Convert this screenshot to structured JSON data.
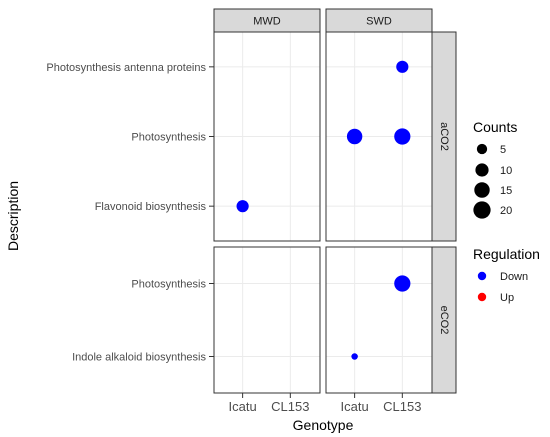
{
  "chart_data": {
    "type": "scatter",
    "xlabel": "Genotype",
    "ylabel": "Description",
    "col_facets": [
      "MWD",
      "SWD"
    ],
    "row_facets": [
      "aCO2",
      "eCO2"
    ],
    "x_categories": [
      "Icatu",
      "CL153"
    ],
    "row_categories": {
      "aCO2": [
        "Flavonoid biosynthesis",
        "Photosynthesis",
        "Photosynthesis antenna proteins"
      ],
      "eCO2": [
        "Indole alkaloid biosynthesis",
        "Photosynthesis"
      ]
    },
    "points": [
      {
        "col": "MWD",
        "row": "aCO2",
        "genotype": "Icatu",
        "description": "Flavonoid biosynthesis",
        "count": 8,
        "regulation": "Down"
      },
      {
        "col": "SWD",
        "row": "aCO2",
        "genotype": "CL153",
        "description": "Photosynthesis antenna proteins",
        "count": 8,
        "regulation": "Down"
      },
      {
        "col": "SWD",
        "row": "aCO2",
        "genotype": "Icatu",
        "description": "Photosynthesis",
        "count": 15,
        "regulation": "Down"
      },
      {
        "col": "SWD",
        "row": "aCO2",
        "genotype": "CL153",
        "description": "Photosynthesis",
        "count": 17,
        "regulation": "Down"
      },
      {
        "col": "SWD",
        "row": "eCO2",
        "genotype": "CL153",
        "description": "Photosynthesis",
        "count": 17,
        "regulation": "Down"
      },
      {
        "col": "SWD",
        "row": "eCO2",
        "genotype": "Icatu",
        "description": "Indole alkaloid biosynthesis",
        "count": 1,
        "regulation": "Down"
      }
    ],
    "legend": {
      "size_title": "Counts",
      "size_breaks": [
        5,
        10,
        15,
        20
      ],
      "color_title": "Regulation",
      "color_entries": [
        {
          "label": "Down",
          "color": "#0000ff"
        },
        {
          "label": "Up",
          "color": "#ff0000"
        }
      ]
    }
  }
}
